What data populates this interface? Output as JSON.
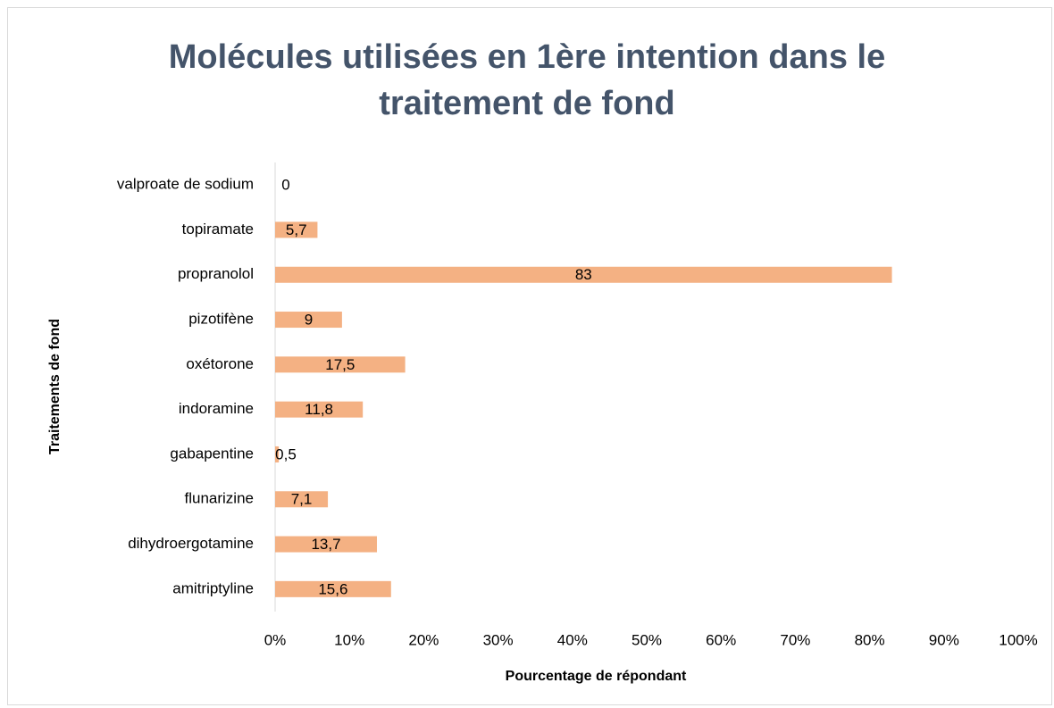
{
  "chart_data": {
    "type": "bar",
    "orientation": "horizontal",
    "title": "Molécules utilisées en 1ère intention dans le traitement de fond",
    "x_label": "Pourcentage de répondant",
    "y_label": "Traitements de fond",
    "categories": [
      "valproate de sodium",
      "topiramate",
      "propranolol",
      "pizotifène",
      "oxétorone",
      "indoramine",
      "gabapentine",
      "flunarizine",
      "dihydroergotamine",
      "amitriptyline"
    ],
    "values": [
      0,
      5.7,
      83,
      9,
      17.5,
      11.8,
      0.5,
      7.1,
      13.7,
      15.6
    ],
    "value_labels": [
      "0",
      "5,7",
      "83",
      "9",
      "17,5",
      "11,8",
      "0,5",
      "7,1",
      "13,7",
      "15,6"
    ],
    "color": "#f4b183",
    "xlim": [
      0,
      100
    ],
    "xticks": [
      {
        "value": 0,
        "label": "0%"
      },
      {
        "value": 10,
        "label": "10%"
      },
      {
        "value": 20,
        "label": "20%"
      },
      {
        "value": 30,
        "label": "30%"
      },
      {
        "value": 40,
        "label": "40%"
      },
      {
        "value": 50,
        "label": "50%"
      },
      {
        "value": 60,
        "label": "60%"
      },
      {
        "value": 70,
        "label": "70%"
      },
      {
        "value": 80,
        "label": "80%"
      },
      {
        "value": 90,
        "label": "90%"
      },
      {
        "value": 100,
        "label": "100%"
      }
    ],
    "grid": false
  }
}
